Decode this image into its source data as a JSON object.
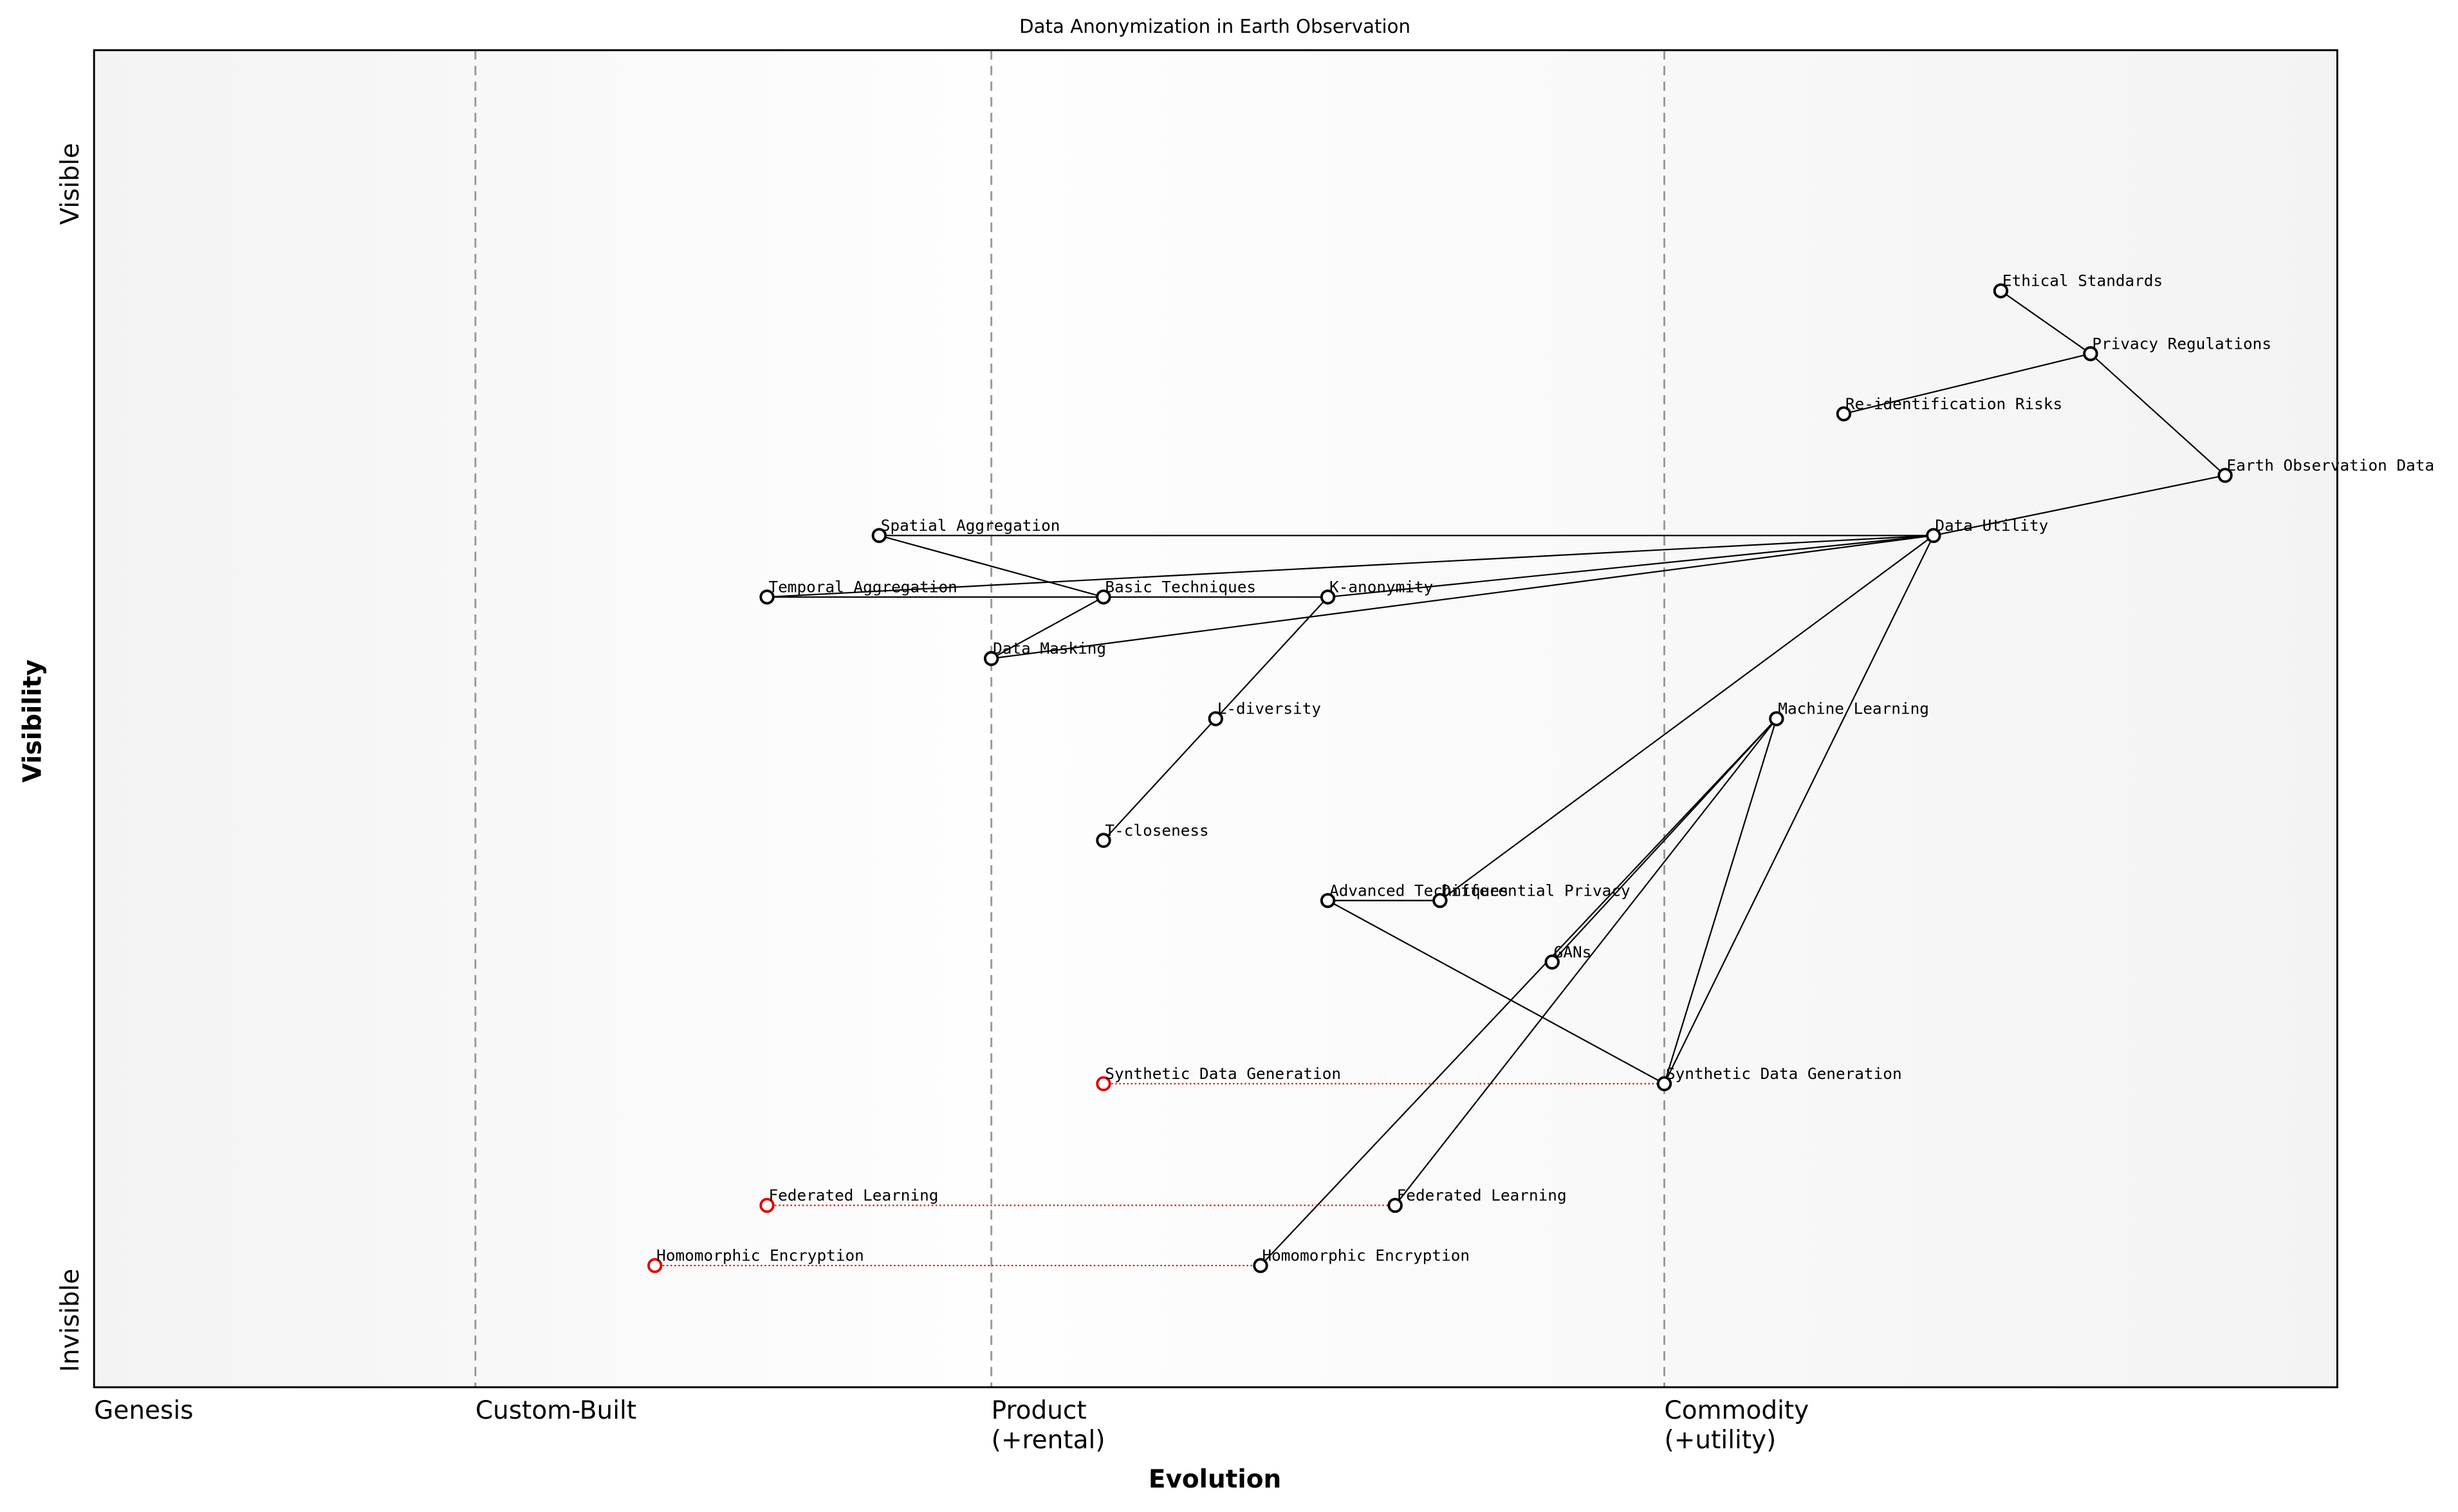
{
  "chart_data": {
    "type": "wardley",
    "title": "Data Anonymization in Earth Observation",
    "xlabel": "Evolution",
    "ylabel": "Visibility",
    "xlim": [
      0,
      1
    ],
    "ylim": [
      0,
      1
    ],
    "xticks": [
      {
        "value": 0,
        "label": [
          "Genesis"
        ]
      },
      {
        "value": 0.17,
        "label": [
          "Custom-Built"
        ]
      },
      {
        "value": 0.4,
        "label": [
          "Product",
          "(+rental)"
        ]
      },
      {
        "value": 0.7,
        "label": [
          "Commodity",
          "(+utility)"
        ]
      }
    ],
    "yticks": [
      {
        "value": 0.05,
        "label": "Invisible"
      },
      {
        "value": 0.9,
        "label": "Visible"
      }
    ],
    "nodes": [
      {
        "name": "Ethical Standards",
        "x": 0.85,
        "y": 0.82
      },
      {
        "name": "Privacy Regulations",
        "x": 0.89,
        "y": 0.773
      },
      {
        "name": "Re-identification Risks",
        "x": 0.78,
        "y": 0.728
      },
      {
        "name": "Earth Observation Data",
        "x": 0.95,
        "y": 0.682
      },
      {
        "name": "Data Utility",
        "x": 0.82,
        "y": 0.637
      },
      {
        "name": "Spatial Aggregation",
        "x": 0.35,
        "y": 0.637
      },
      {
        "name": "Temporal Aggregation",
        "x": 0.3,
        "y": 0.591
      },
      {
        "name": "Basic Techniques",
        "x": 0.45,
        "y": 0.591
      },
      {
        "name": "K-anonymity",
        "x": 0.55,
        "y": 0.591
      },
      {
        "name": "Data Masking",
        "x": 0.4,
        "y": 0.545
      },
      {
        "name": "L-diversity",
        "x": 0.5,
        "y": 0.5
      },
      {
        "name": "T-closeness",
        "x": 0.45,
        "y": 0.409
      },
      {
        "name": "Machine Learning",
        "x": 0.75,
        "y": 0.5
      },
      {
        "name": "Advanced Techniques",
        "x": 0.55,
        "y": 0.364
      },
      {
        "name": "Differential Privacy",
        "x": 0.6,
        "y": 0.364
      },
      {
        "name": "GANs",
        "x": 0.65,
        "y": 0.318
      },
      {
        "name": "Synthetic Data Generation",
        "x": 0.7,
        "y": 0.227
      },
      {
        "name": "Federated Learning",
        "x": 0.58,
        "y": 0.136
      },
      {
        "name": "Homomorphic Encryption",
        "x": 0.52,
        "y": 0.091
      }
    ],
    "links": [
      [
        0,
        1
      ],
      [
        1,
        3
      ],
      [
        2,
        1
      ],
      [
        3,
        4
      ],
      [
        4,
        5
      ],
      [
        4,
        6
      ],
      [
        4,
        9
      ],
      [
        4,
        8
      ],
      [
        4,
        14
      ],
      [
        4,
        16
      ],
      [
        5,
        7
      ],
      [
        6,
        7
      ],
      [
        7,
        8
      ],
      [
        7,
        9
      ],
      [
        8,
        10
      ],
      [
        10,
        11
      ],
      [
        13,
        14
      ],
      [
        13,
        16
      ],
      [
        12,
        15
      ],
      [
        12,
        17
      ],
      [
        12,
        16
      ],
      [
        12,
        18
      ]
    ],
    "evolving": [
      {
        "name": "Synthetic Data Generation",
        "x": 0.45,
        "y": 0.227,
        "to": 16
      },
      {
        "name": "Federated Learning",
        "x": 0.3,
        "y": 0.136,
        "to": 17
      },
      {
        "name": "Homomorphic Encryption",
        "x": 0.25,
        "y": 0.091,
        "to": 18
      }
    ],
    "color": "#000000",
    "evolve_color": "#e00000"
  }
}
